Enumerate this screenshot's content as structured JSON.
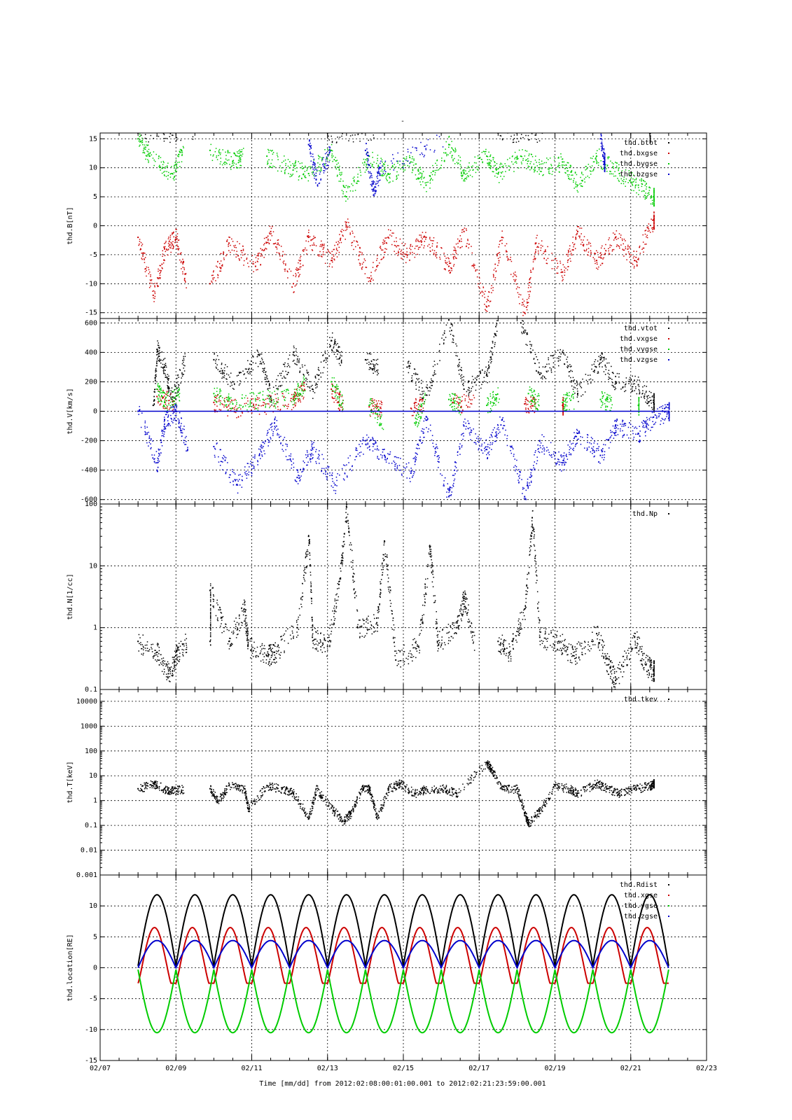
{
  "figure": {
    "top_title": "-",
    "xaxis_title": "Time [mm/dd]  from 2012:02:08:00:01:00.001  to  2012:02:21:23:59:00.001"
  },
  "chart_data": [
    {
      "type": "scatter",
      "ylabel": "thd.B[nT]",
      "ylim": [
        -16,
        16
      ],
      "yscale": "linear",
      "yticks": [
        -15,
        -10,
        -5,
        0,
        5,
        10,
        15
      ],
      "xlim": [
        0,
        16
      ],
      "grid": true,
      "legend_placement": "top-right",
      "series": [
        {
          "name": "thd.btot",
          "color": "#000000",
          "points": [
            [
              1.0,
              16
            ],
            [
              6.0,
              16
            ],
            [
              10.5,
              16
            ],
            [
              14.5,
              16
            ]
          ]
        },
        {
          "name": "thd.bxgse",
          "color": "#cc0000",
          "points": [
            [
              1.0,
              -2
            ],
            [
              1.4,
              -12
            ],
            [
              1.7,
              -4
            ],
            [
              2.0,
              -2
            ],
            [
              2.9,
              -10
            ],
            [
              3.4,
              -3
            ],
            [
              4.1,
              -7
            ],
            [
              4.5,
              -1
            ],
            [
              5.1,
              -10
            ],
            [
              5.5,
              -2
            ],
            [
              6.1,
              -6
            ],
            [
              6.5,
              0
            ],
            [
              7.1,
              -9
            ],
            [
              7.6,
              -2
            ],
            [
              8.1,
              -5
            ],
            [
              8.6,
              -2
            ],
            [
              9.2,
              -7
            ],
            [
              9.6,
              -1
            ],
            [
              10.2,
              -14
            ],
            [
              10.6,
              -2
            ],
            [
              11.2,
              -15
            ],
            [
              11.5,
              -3
            ],
            [
              12.2,
              -8
            ],
            [
              12.6,
              -1
            ],
            [
              13.1,
              -6
            ],
            [
              13.6,
              -2
            ],
            [
              14.1,
              -6
            ],
            [
              14.6,
              1
            ]
          ]
        },
        {
          "name": "thd.bygse",
          "color": "#00cc00",
          "points": [
            [
              1.0,
              15
            ],
            [
              1.3,
              12
            ],
            [
              1.9,
              9
            ],
            [
              2.9,
              13
            ],
            [
              3.5,
              11
            ],
            [
              4.4,
              12
            ],
            [
              5.0,
              10
            ],
            [
              5.5,
              9
            ],
            [
              6.1,
              13
            ],
            [
              6.5,
              5
            ],
            [
              7.1,
              12
            ],
            [
              7.6,
              9
            ],
            [
              8.2,
              11
            ],
            [
              8.6,
              7
            ],
            [
              9.2,
              14
            ],
            [
              9.6,
              9
            ],
            [
              10.2,
              12
            ],
            [
              10.5,
              9
            ],
            [
              11.1,
              12
            ],
            [
              11.6,
              10
            ],
            [
              12.2,
              11
            ],
            [
              12.6,
              7
            ],
            [
              13.1,
              12
            ],
            [
              13.7,
              9
            ],
            [
              14.2,
              7
            ],
            [
              14.6,
              5
            ]
          ]
        },
        {
          "name": "thd.bzgse",
          "color": "#0000cc",
          "points": [
            [
              5.5,
              14
            ],
            [
              5.7,
              8
            ],
            [
              7.0,
              13
            ],
            [
              7.2,
              6
            ],
            [
              7.4,
              10
            ],
            [
              13.2,
              15
            ],
            [
              13.3,
              11
            ]
          ]
        }
      ]
    },
    {
      "type": "scatter",
      "ylabel": "thd.V[km/s]",
      "ylim": [
        -630,
        630
      ],
      "yscale": "linear",
      "yticks": [
        -600,
        -400,
        -200,
        0,
        200,
        400,
        600
      ],
      "xlim": [
        0,
        16
      ],
      "grid": true,
      "legend_placement": "top-right",
      "series": [
        {
          "name": "thd.vtot",
          "color": "#000000",
          "points": [
            [
              1.4,
              40
            ],
            [
              1.5,
              420
            ],
            [
              1.7,
              300
            ],
            [
              1.9,
              80
            ],
            [
              3.0,
              350
            ],
            [
              3.5,
              200
            ],
            [
              4.2,
              380
            ],
            [
              4.5,
              100
            ],
            [
              5.1,
              400
            ],
            [
              5.6,
              150
            ],
            [
              6.1,
              480
            ],
            [
              7.0,
              350
            ],
            [
              8.1,
              300
            ],
            [
              8.6,
              110
            ],
            [
              9.2,
              620
            ],
            [
              9.6,
              150
            ],
            [
              10.2,
              250
            ],
            [
              11.1,
              600
            ],
            [
              11.6,
              250
            ],
            [
              12.2,
              400
            ],
            [
              12.6,
              120
            ],
            [
              13.2,
              350
            ],
            [
              13.6,
              200
            ],
            [
              14.2,
              180
            ],
            [
              14.6,
              60
            ]
          ]
        },
        {
          "name": "thd.vxgse",
          "color": "#cc0000",
          "points": [
            [
              1.5,
              100
            ],
            [
              3.0,
              60
            ],
            [
              3.5,
              20
            ],
            [
              4.3,
              40
            ],
            [
              5.1,
              80
            ],
            [
              6.1,
              150
            ],
            [
              7.1,
              30
            ],
            [
              8.2,
              20
            ],
            [
              9.3,
              60
            ],
            [
              11.2,
              50
            ],
            [
              12.2,
              40
            ]
          ]
        },
        {
          "name": "thd.vygse",
          "color": "#00cc00",
          "points": [
            [
              1.5,
              150
            ],
            [
              1.7,
              60
            ],
            [
              3.0,
              120
            ],
            [
              3.5,
              50
            ],
            [
              4.3,
              80
            ],
            [
              5.1,
              100
            ],
            [
              6.1,
              200
            ],
            [
              7.1,
              40
            ],
            [
              8.3,
              -80
            ],
            [
              9.2,
              80
            ],
            [
              10.2,
              40
            ],
            [
              11.3,
              120
            ],
            [
              12.2,
              60
            ],
            [
              13.2,
              80
            ],
            [
              14.2,
              40
            ]
          ]
        },
        {
          "name": "thd.vzgse",
          "color": "#0000cc",
          "points": [
            [
              1.0,
              0
            ],
            [
              1.5,
              -350
            ],
            [
              1.7,
              -60
            ],
            [
              2.0,
              0
            ],
            [
              3.0,
              -240
            ],
            [
              3.6,
              -500
            ],
            [
              4.2,
              -300
            ],
            [
              4.6,
              -80
            ],
            [
              5.2,
              -450
            ],
            [
              5.6,
              -250
            ],
            [
              6.2,
              -500
            ],
            [
              7.0,
              -200
            ],
            [
              7.5,
              -300
            ],
            [
              8.2,
              -420
            ],
            [
              8.6,
              -60
            ],
            [
              9.2,
              -580
            ],
            [
              9.6,
              -100
            ],
            [
              10.2,
              -260
            ],
            [
              10.6,
              -60
            ],
            [
              11.2,
              -580
            ],
            [
              11.6,
              -200
            ],
            [
              12.2,
              -350
            ],
            [
              12.6,
              -150
            ],
            [
              13.2,
              -300
            ],
            [
              13.6,
              -100
            ],
            [
              14.2,
              -150
            ],
            [
              14.6,
              -40
            ],
            [
              15.0,
              0
            ]
          ]
        }
      ]
    },
    {
      "type": "scatter",
      "ylabel": "thd.N[1/cc]",
      "ylim": [
        0.1,
        100
      ],
      "yscale": "log",
      "yticks": [
        0.1,
        1,
        10,
        100
      ],
      "xlim": [
        0,
        16
      ],
      "grid": true,
      "legend_placement": "top-right",
      "series": [
        {
          "name": "thd.Np",
          "color": "#000000",
          "points": [
            [
              1.0,
              0.6
            ],
            [
              1.5,
              0.4
            ],
            [
              1.8,
              0.18
            ],
            [
              2.0,
              0.35
            ],
            [
              2.9,
              0.6
            ],
            [
              2.9,
              4
            ],
            [
              3.4,
              0.6
            ],
            [
              3.8,
              2
            ],
            [
              3.9,
              0.5
            ],
            [
              4.4,
              0.35
            ],
            [
              4.6,
              0.4
            ],
            [
              5.2,
              1
            ],
            [
              5.5,
              30
            ],
            [
              5.6,
              0.7
            ],
            [
              6.0,
              0.5
            ],
            [
              6.3,
              5
            ],
            [
              6.5,
              90
            ],
            [
              6.8,
              1
            ],
            [
              7.3,
              1.2
            ],
            [
              7.5,
              25
            ],
            [
              7.8,
              0.3
            ],
            [
              8.4,
              0.5
            ],
            [
              8.7,
              20
            ],
            [
              8.9,
              0.6
            ],
            [
              9.4,
              1
            ],
            [
              9.6,
              3
            ],
            [
              10.5,
              0.6
            ],
            [
              10.8,
              0.4
            ],
            [
              11.2,
              2
            ],
            [
              11.4,
              60
            ],
            [
              11.6,
              0.7
            ],
            [
              12.1,
              0.6
            ],
            [
              12.5,
              0.35
            ],
            [
              13.1,
              0.8
            ],
            [
              13.4,
              0.25
            ],
            [
              13.6,
              0.14
            ],
            [
              14.1,
              0.7
            ],
            [
              14.4,
              0.25
            ],
            [
              14.6,
              0.2
            ]
          ]
        }
      ]
    },
    {
      "type": "scatter",
      "ylabel": "thd.T[keV]",
      "ylim": [
        0.001,
        30000
      ],
      "yscale": "log",
      "yticks": [
        0.001,
        0.01,
        0.1,
        1,
        10,
        100,
        1000,
        10000
      ],
      "ytick_labels": [
        "0.001",
        "0.01",
        "0.1",
        "1",
        "10",
        "100",
        "1000",
        "10000"
      ],
      "xlim": [
        0,
        16
      ],
      "grid": true,
      "legend_placement": "top-right",
      "series": [
        {
          "name": "thd.tkev",
          "color": "#000000",
          "points": [
            [
              1.0,
              3
            ],
            [
              1.4,
              5
            ],
            [
              1.7,
              3
            ],
            [
              1.9,
              2.5
            ],
            [
              2.9,
              3
            ],
            [
              3.1,
              1
            ],
            [
              3.4,
              4
            ],
            [
              3.8,
              3
            ],
            [
              3.9,
              0.5
            ],
            [
              4.4,
              4
            ],
            [
              4.8,
              3
            ],
            [
              5.1,
              2
            ],
            [
              5.5,
              0.2
            ],
            [
              5.7,
              3
            ],
            [
              6.1,
              0.5
            ],
            [
              6.4,
              0.15
            ],
            [
              6.6,
              0.3
            ],
            [
              6.9,
              3
            ],
            [
              7.1,
              3
            ],
            [
              7.3,
              0.2
            ],
            [
              7.6,
              3
            ],
            [
              7.9,
              5
            ],
            [
              8.3,
              2
            ],
            [
              8.6,
              3
            ],
            [
              9.1,
              3
            ],
            [
              9.4,
              2
            ],
            [
              10.2,
              35
            ],
            [
              10.3,
              20
            ],
            [
              10.6,
              3
            ],
            [
              11.0,
              3
            ],
            [
              11.2,
              0.3
            ],
            [
              11.3,
              0.12
            ],
            [
              11.6,
              0.4
            ],
            [
              12.0,
              4
            ],
            [
              12.4,
              3
            ],
            [
              12.6,
              2
            ],
            [
              13.1,
              5
            ],
            [
              13.4,
              3
            ],
            [
              13.7,
              2
            ],
            [
              14.1,
              3
            ],
            [
              14.5,
              4
            ],
            [
              14.6,
              5
            ]
          ]
        }
      ]
    },
    {
      "type": "line",
      "ylabel": "thd.location[RE]",
      "ylim": [
        -15,
        15
      ],
      "yscale": "linear",
      "yticks": [
        -15,
        -10,
        -5,
        0,
        5,
        10
      ],
      "xlim": [
        0,
        16
      ],
      "grid": true,
      "legend_placement": "top-right",
      "x_tick_labels": [
        "02/07",
        "02/09",
        "02/11",
        "02/13",
        "02/15",
        "02/17",
        "02/19",
        "02/21",
        "02/23"
      ],
      "x_tick_values": [
        0,
        2,
        4,
        6,
        8,
        10,
        12,
        14,
        16
      ],
      "orbit_period_days": 1,
      "x_range": [
        1.0,
        15.0
      ],
      "series": [
        {
          "name": "thd.Rdist",
          "color": "#000000",
          "min": 0.3,
          "max": 11.8
        },
        {
          "name": "thd.xgse",
          "color": "#cc0000",
          "min": -2.5,
          "max": 6.5
        },
        {
          "name": "thd.ygse",
          "color": "#00cc00",
          "min": -10.5,
          "max": -0.3
        },
        {
          "name": "thd.zgse",
          "color": "#0000cc",
          "min": 0.0,
          "max": 4.4
        }
      ]
    }
  ]
}
